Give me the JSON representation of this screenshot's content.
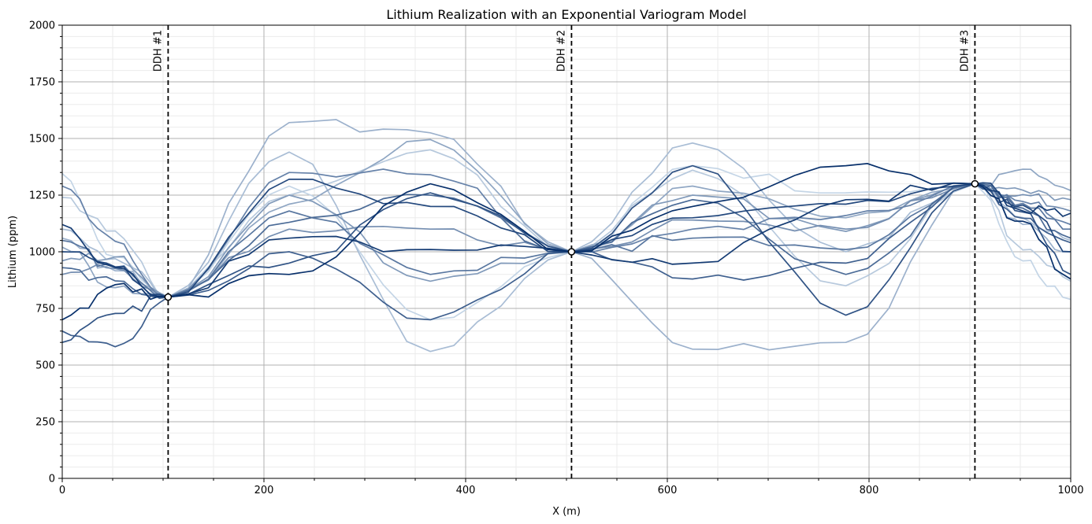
{
  "chart_data": {
    "type": "line",
    "title": "Lithium Realization with an Exponential Variogram Model",
    "xlabel": "X (m)",
    "ylabel": "Lithium (ppm)",
    "xlim": [
      0,
      1000
    ],
    "ylim": [
      0,
      2000
    ],
    "x_major_ticks": [
      0,
      200,
      400,
      600,
      800,
      1000
    ],
    "x_minor_ticks": [
      50,
      100,
      150,
      250,
      300,
      350,
      450,
      500,
      550,
      650,
      700,
      750,
      850,
      900,
      950
    ],
    "y_major_ticks": [
      0,
      250,
      500,
      750,
      1000,
      1250,
      1500,
      1750,
      2000
    ],
    "y_minor_step": 50,
    "grid": true,
    "legend": "none",
    "colormap": "Blues",
    "drillholes": [
      {
        "label": "DDH #1",
        "x": 105,
        "value": 800
      },
      {
        "label": "DDH #2",
        "x": 505,
        "value": 1000
      },
      {
        "label": "DDH #3",
        "x": 905,
        "value": 1300
      }
    ],
    "realization_start_values": [
      1345,
      1240,
      1100,
      1060,
      1020,
      960,
      900,
      1290,
      1050,
      930,
      650,
      600,
      1000,
      1120,
      700
    ],
    "realization_peak_values_segment1": [
      1290,
      1250,
      1440,
      1570,
      1210,
      1250,
      1100,
      1350,
      1180,
      1130,
      1000,
      950,
      1320,
      1060,
      900
    ],
    "realization_mid_values_segment1": [
      700,
      1450,
      560,
      1525,
      1495,
      870,
      1100,
      1340,
      900,
      1250,
      700,
      1260,
      1200,
      1010,
      1300
    ],
    "realization_peak_values_segment2": [
      1380,
      1360,
      1480,
      570,
      1290,
      1250,
      1140,
      1100,
      1060,
      1230,
      880,
      1380,
      1150,
      950,
      1200
    ],
    "realization_mid_values_segment2": [
      1260,
      850,
      1000,
      600,
      1150,
      1090,
      1100,
      1160,
      1010,
      900,
      950,
      720,
      1210,
      1230,
      1380
    ],
    "realization_end_values": [
      790,
      870,
      1050,
      1000,
      1270,
      1230,
      1180,
      1120,
      1100,
      1060,
      1040,
      900,
      1000,
      1170,
      880
    ]
  }
}
